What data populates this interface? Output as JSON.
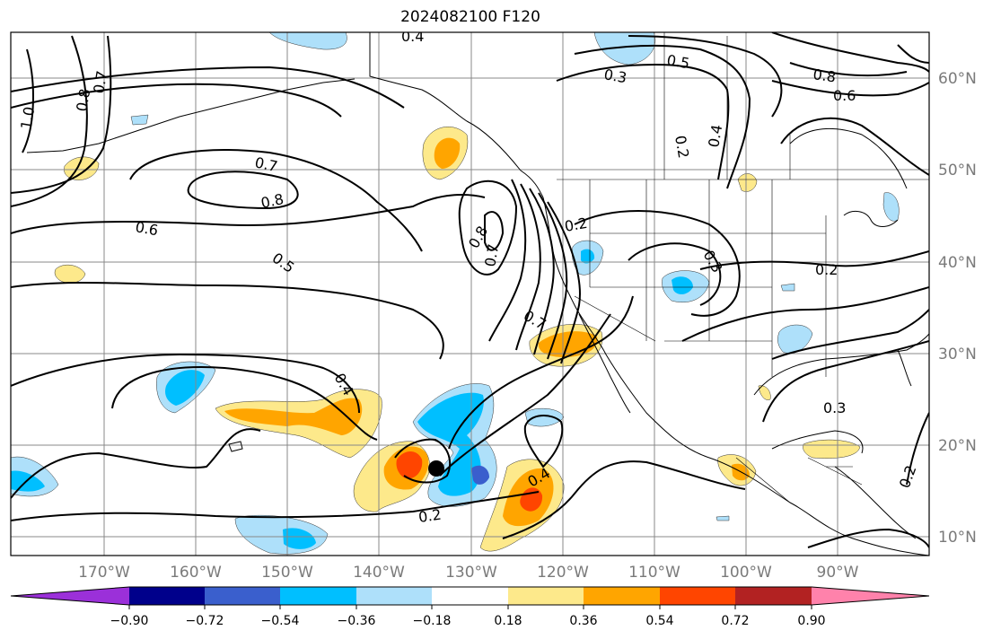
{
  "title": "2024082100 F120",
  "map": {
    "lat_labels": [
      "60°N",
      "50°N",
      "40°N",
      "30°N",
      "20°N",
      "10°N"
    ],
    "lon_labels": [
      "170°W",
      "160°W",
      "150°W",
      "140°W",
      "130°W",
      "120°W",
      "110°W",
      "100°W",
      "90°W"
    ],
    "contour_labels": [
      "0.4",
      "0.5",
      "0.8",
      "0.6",
      "0.3",
      "0.7",
      "0.8",
      "0.6",
      "0.5",
      "1.0",
      "0.8",
      "0.7",
      "0.2",
      "0.4",
      "0.8",
      "0.7",
      "0.2",
      "0.3",
      "0.7",
      "0.2",
      "0.4",
      "0.3",
      "0.4",
      "0.2",
      "0.2"
    ],
    "storm_marker": "black-dot",
    "colors": {
      "purple": "#9b30d9",
      "navy": "#00008b",
      "royal_blue": "#3a5fcd",
      "deep_sky": "#00bfff",
      "light_blue": "#aee0fa",
      "white": "#ffffff",
      "light_yellow": "#fde98b",
      "orange": "#ffa500",
      "red_orange": "#ff4500",
      "firebrick": "#b22222",
      "pink": "#ff82ab"
    }
  },
  "colorbar": {
    "tick_labels": [
      "−0.90",
      "−0.72",
      "−0.54",
      "−0.36",
      "−0.18",
      "0.18",
      "0.36",
      "0.54",
      "0.72",
      "0.90"
    ],
    "colors": [
      "#9b30d9",
      "#00008b",
      "#3a5fcd",
      "#00bfff",
      "#aee0fa",
      "#ffffff",
      "#fde98b",
      "#ffa500",
      "#ff4500",
      "#b22222",
      "#ff82ab"
    ]
  }
}
